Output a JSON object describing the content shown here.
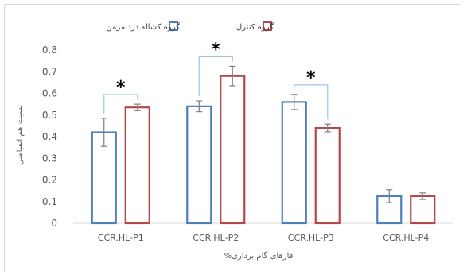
{
  "chart_data": {
    "type": "bar",
    "categories": [
      "CCR.HL-P1",
      "CCR.HL-P2",
      "CCR.HL-P3",
      "CCR.HL-P4"
    ],
    "series": [
      {
        "name": "گروه کشاله درد مزمن",
        "color": "#4F7FB8",
        "values": [
          0.42,
          0.54,
          0.56,
          0.125
        ],
        "errors": [
          0.065,
          0.025,
          0.035,
          0.03
        ]
      },
      {
        "name": "گروه کنترل",
        "color": "#B5484A",
        "values": [
          0.535,
          0.68,
          0.44,
          0.125
        ],
        "errors": [
          0.015,
          0.045,
          0.018,
          0.015
        ]
      }
    ],
    "xlabel": "فازهای گام برداری%",
    "ylabel": "نسبت هم انقباضی",
    "ylim": [
      0,
      0.8
    ],
    "yticks": [
      "0",
      "0.1",
      "0.2",
      "0.3",
      "0.4",
      "0.5",
      "0.6",
      "0.7",
      "0.8"
    ],
    "significance": [
      {
        "category": "CCR.HL-P1",
        "mark": "*"
      },
      {
        "category": "CCR.HL-P2",
        "mark": "*"
      },
      {
        "category": "CCR.HL-P3",
        "mark": "*"
      }
    ],
    "grid": false,
    "legend": "top-center"
  }
}
